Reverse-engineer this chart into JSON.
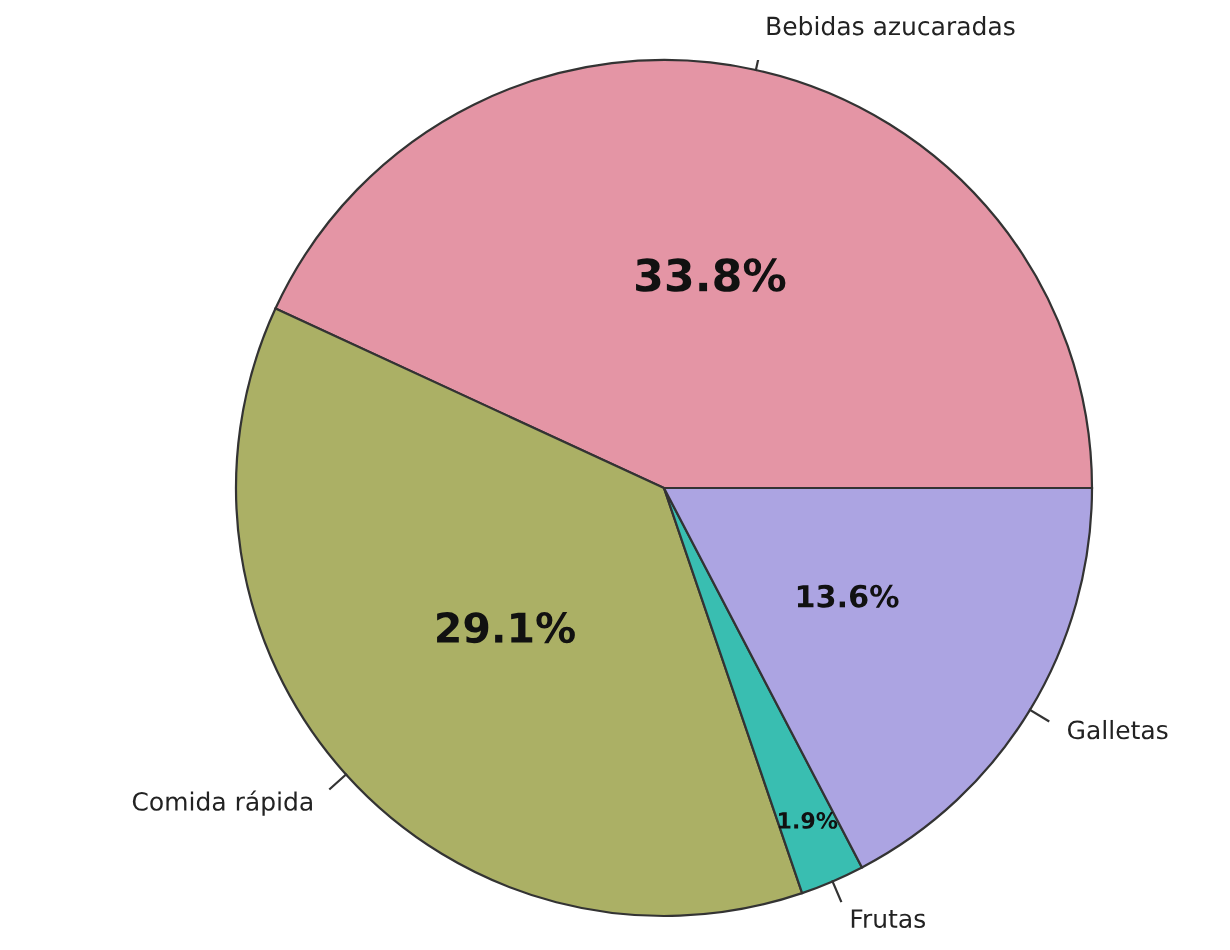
{
  "chart_data": {
    "type": "pie",
    "categories": [
      "Bebidas azucaradas",
      "Comida rápida",
      "Frutas",
      "Galletas"
    ],
    "values": [
      33.8,
      29.1,
      1.9,
      13.6
    ],
    "value_labels": [
      "33.8%",
      "29.1%",
      "1.9%",
      "13.6%"
    ],
    "colors": [
      "#e495a5",
      "#abb065",
      "#39beb1",
      "#aca4e2"
    ],
    "legend": false
  }
}
